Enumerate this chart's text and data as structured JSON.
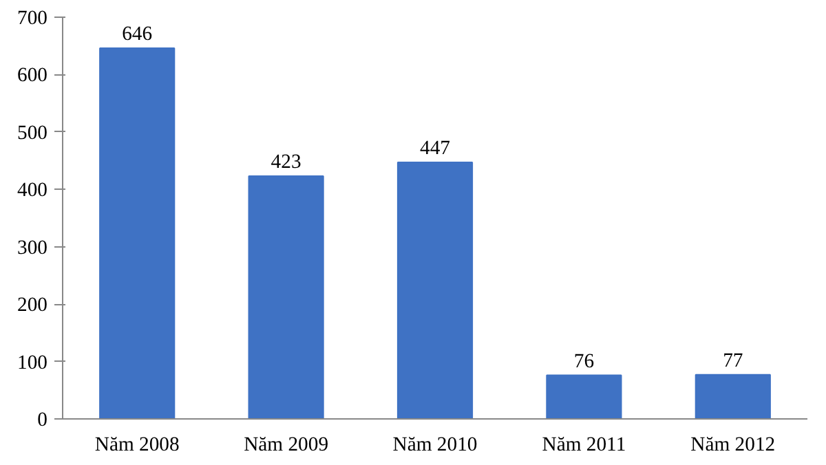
{
  "chart_data": {
    "type": "bar",
    "categories": [
      "Năm 2008",
      "Năm 2009",
      "Năm 2010",
      "Năm 2011",
      "Năm 2012"
    ],
    "values": [
      646,
      423,
      447,
      76,
      77
    ],
    "color": "#3f72c4",
    "ylim": [
      0,
      700
    ],
    "yticks": [
      0,
      100,
      200,
      300,
      400,
      500,
      600,
      700
    ],
    "grid": false,
    "data_labels": true
  }
}
